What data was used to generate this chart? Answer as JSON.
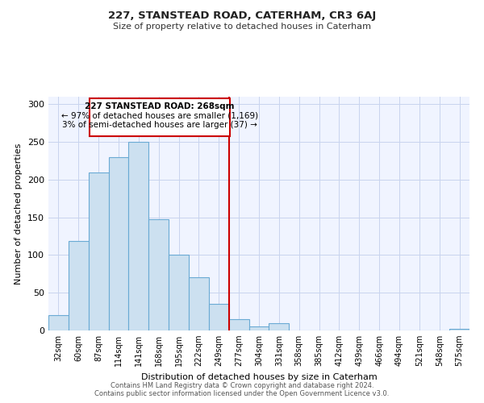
{
  "title": "227, STANSTEAD ROAD, CATERHAM, CR3 6AJ",
  "subtitle": "Size of property relative to detached houses in Caterham",
  "xlabel": "Distribution of detached houses by size in Caterham",
  "ylabel": "Number of detached properties",
  "bar_color": "#cce0f0",
  "bar_edge_color": "#6aaad4",
  "categories": [
    "32sqm",
    "60sqm",
    "87sqm",
    "114sqm",
    "141sqm",
    "168sqm",
    "195sqm",
    "222sqm",
    "249sqm",
    "277sqm",
    "304sqm",
    "331sqm",
    "358sqm",
    "385sqm",
    "412sqm",
    "439sqm",
    "466sqm",
    "494sqm",
    "521sqm",
    "548sqm",
    "575sqm"
  ],
  "values": [
    20,
    119,
    210,
    230,
    250,
    148,
    101,
    71,
    35,
    15,
    5,
    10,
    0,
    0,
    0,
    0,
    0,
    0,
    0,
    0,
    2
  ],
  "ylim": [
    0,
    310
  ],
  "yticks": [
    0,
    50,
    100,
    150,
    200,
    250,
    300
  ],
  "vline_index": 9,
  "vline_color": "#cc0000",
  "annotation_title": "227 STANSTEAD ROAD: 268sqm",
  "annotation_line1": "← 97% of detached houses are smaller (1,169)",
  "annotation_line2": "3% of semi-detached houses are larger (37) →",
  "annotation_box_color": "#ffffff",
  "annotation_box_edge_color": "#cc0000",
  "footer1": "Contains HM Land Registry data © Crown copyright and database right 2024.",
  "footer2": "Contains public sector information licensed under the Open Government Licence v3.0.",
  "background_color": "#ffffff",
  "plot_bg_color": "#f0f4ff"
}
